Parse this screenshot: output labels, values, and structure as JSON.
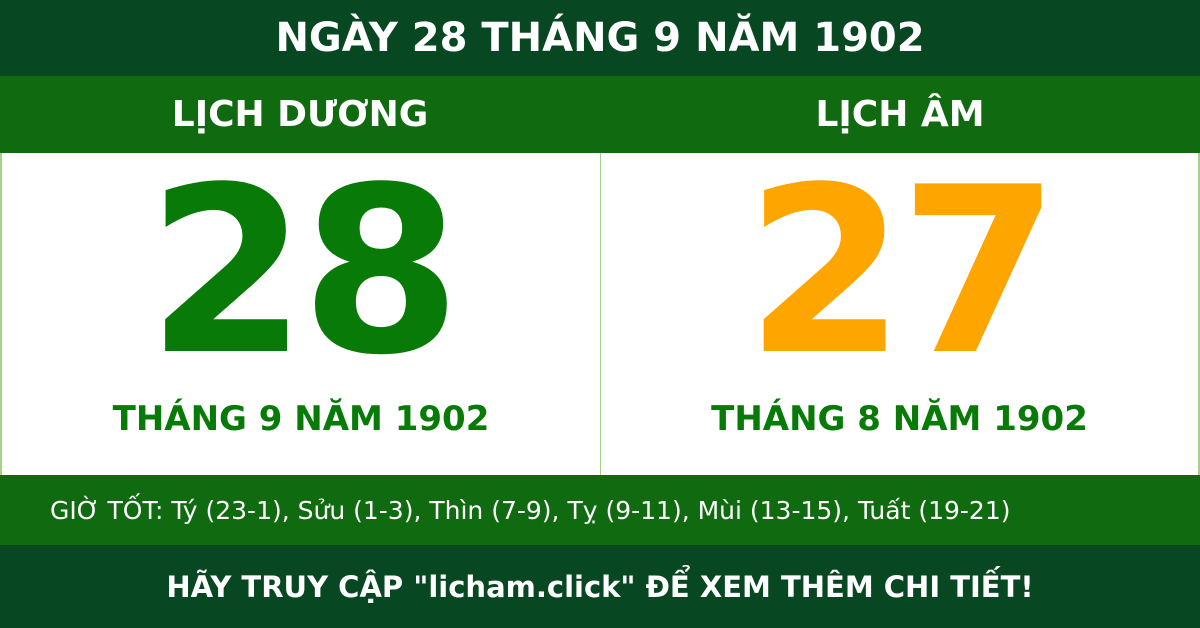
{
  "title": "NGÀY 28 THÁNG 9 NĂM 1902",
  "solar": {
    "label": "LỊCH DƯƠNG",
    "day": "28",
    "month_year": "THÁNG 9 NĂM 1902",
    "color": "#077a07"
  },
  "lunar": {
    "label": "LỊCH ÂM",
    "day": "27",
    "month_year": "THÁNG 8 NĂM 1902",
    "color": "#ffa500"
  },
  "good_hours": "GIỜ TỐT: Tý (23-1), Sửu (1-3), Thìn (7-9), Tỵ (9-11), Mùi (13-15), Tuất (19-21)",
  "footer": "HÃY TRUY CẬP \"licham.click\" ĐỂ XEM THÊM CHI TIẾT!"
}
